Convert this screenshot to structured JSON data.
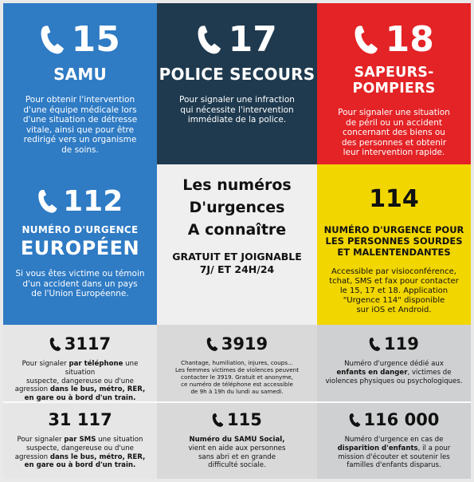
{
  "samu": {
    "number": "15",
    "name": "SAMU",
    "lines": [
      "Pour obtenir l'intervention",
      "d'une équipe médicale lors",
      "d'une situation de détresse",
      "vitale, ainsi que pour être",
      "redirigé vers un organisme",
      "de soins."
    ]
  },
  "police": {
    "number": "17",
    "name": "POLICE SECOURS",
    "lines": [
      "Pour signaler une infraction",
      "qui nécessite l'intervention",
      "immédiate de la police."
    ]
  },
  "pompiers": {
    "number": "18",
    "name": "SAPEURS-POMPIERS",
    "lines": [
      "Pour signaler une situation",
      "de péril ou un accident",
      "concernant des biens ou",
      "des personnes et obtenir",
      "leur intervention rapide."
    ]
  },
  "europe": {
    "number": "112",
    "subtitle": "NUMÉRO D'URGENCE",
    "name": "EUROPÉEN",
    "lines": [
      "Si vous êtes victime ou témoin",
      "d'un accident dans un pays",
      "de l'Union Européenne."
    ]
  },
  "center": {
    "title_lines": [
      "Les numéros",
      "D'urgences",
      "A connaître"
    ],
    "sub_lines": [
      "GRATUIT ET JOIGNABLE",
      "7J/ ET 24H/24"
    ]
  },
  "sourds": {
    "number": "114",
    "title_lines": [
      "NUMÉRO D'URGENCE POUR",
      "LES PERSONNES SOURDES",
      "ET MALENTENDANTES"
    ],
    "lines": [
      "Accessible par visioconférence,",
      "tchat, SMS et fax pour contacter",
      "le 15, 17 et 18. Application",
      "\"Urgence 114\" disponible",
      "sur iOS et Android."
    ]
  },
  "n3117": {
    "number": "3117",
    "l1_pre": "Pour signaler ",
    "l1_bold": "par téléphone",
    "l1_post": " une situation",
    "l2": "suspecte, dangereuse ou d'une",
    "l3_pre": "agression ",
    "l3_bold": "dans le bus, métro, RER,",
    "l4_bold": "en gare ou à bord d'un train."
  },
  "n3919": {
    "number": "3919",
    "lines": [
      "Chantage, humiliation, injures, coups...",
      "Les femmes victimes de violences peuvent",
      "contacter le 3919. Gratuit et anonyme,",
      "ce numéro de téléphone est accessible",
      "de 9h à 19h du lundi au samedi."
    ]
  },
  "n119": {
    "number": "119",
    "l1": "Numéro d'urgence dédié aux",
    "l2_bold": "enfants en danger",
    "l2_post": ", victimes de",
    "l3": "violences physiques ou psychologiques."
  },
  "n31117": {
    "number": "31 117",
    "l1_pre": "Pour signaler ",
    "l1_bold": "par SMS",
    "l1_post": " une situation",
    "l2": "suspecte, dangereuse ou d'une",
    "l3_pre": "agression ",
    "l3_bold": "dans le bus, métro, RER,",
    "l4_bold": "en gare ou à bord d'un train."
  },
  "n115": {
    "number": "115",
    "l1_bold": "Numéro du SAMU Social,",
    "lines": [
      "vient en aide aux personnes",
      "sans abri et en grande",
      "difficulté sociale."
    ]
  },
  "n116000": {
    "number": "116 000",
    "l1": "Numéro d'urgence en cas de",
    "l2_bold": "disparition d'enfants",
    "l2_post": ", il a pour",
    "l3": "mission d'écouter et soutenir les",
    "l4": "familles d'enfants disparus."
  },
  "colors": {
    "blue": "#2f7bc4",
    "navy": "#1f3a4f",
    "red": "#e32326",
    "yellow": "#f2d600"
  },
  "icons": {
    "phone": "phone-icon"
  }
}
